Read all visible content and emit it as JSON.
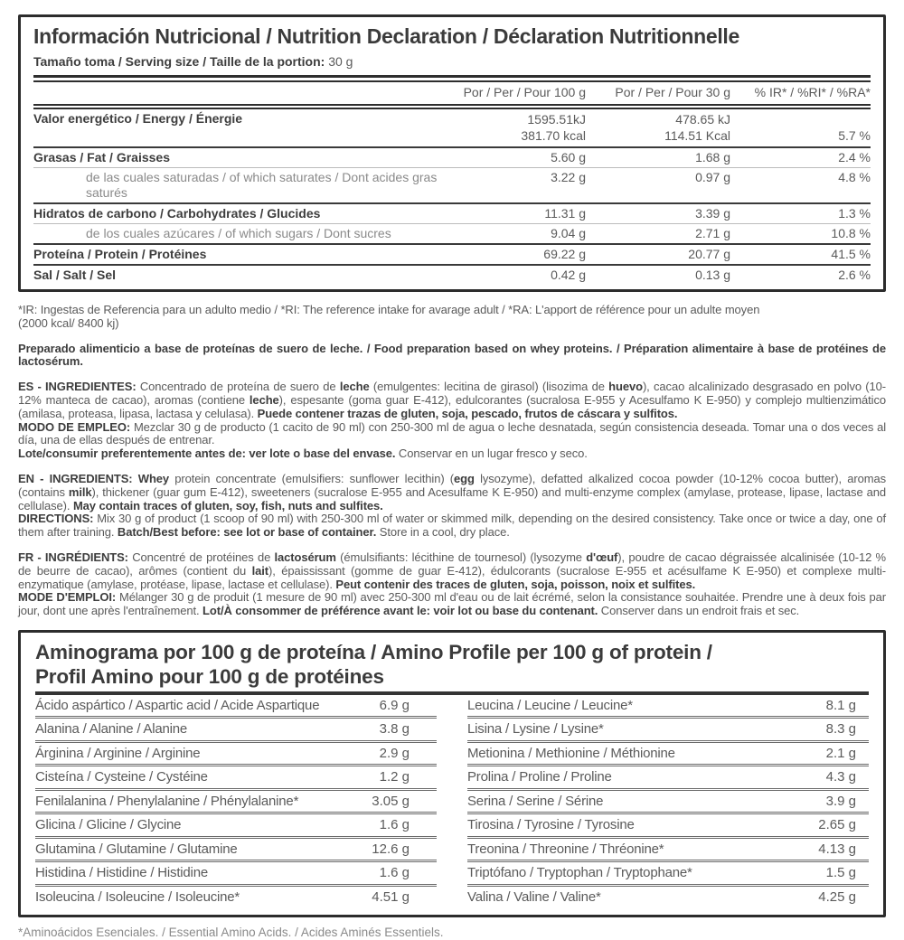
{
  "colors": {
    "text_dark": "#3d3d3d",
    "text_mid": "#5a5a5a",
    "text_light": "#8a8a8a",
    "border": "#2c2c2c"
  },
  "nutrition": {
    "title": "Información Nutricional / Nutrition Declaration / Déclaration Nutritionnelle",
    "serving_label": "Tamaño toma / Serving size / Taille de la portion:",
    "serving_value": "30 g",
    "columns": [
      "Por / Per / Pour 100 g",
      "Por / Per / Pour 30 g",
      "% IR* / %RI* / %RA*"
    ],
    "energy": {
      "label": "Valor energético / Energy / Énergie",
      "kj_100": "1595.51kJ",
      "kcal_100": "381.70 kcal",
      "kj_30": "478.65 kJ",
      "kcal_30": "114.51 Kcal",
      "ri": "5.7 %"
    },
    "rows": [
      {
        "label": "Grasas / Fat / Graisses",
        "v100": "5.60 g",
        "v30": "1.68 g",
        "ri": "2.4 %",
        "sep": "thick"
      },
      {
        "label": "de las cuales saturadas / of which saturates / Dont acides gras saturés",
        "v100": "3.22 g",
        "v30": "0.97 g",
        "ri": "4.8 %",
        "sub": true,
        "sep": "thin"
      },
      {
        "label": "Hidratos de carbono / Carbohydrates / Glucides",
        "v100": "11.31 g",
        "v30": "3.39 g",
        "ri": "1.3 %",
        "sep": "thick"
      },
      {
        "label": "de los cuales azúcares / of which sugars / Dont sucres",
        "v100": "9.04 g",
        "v30": "2.71 g",
        "ri": "10.8 %",
        "sub": true,
        "sep": "thin"
      },
      {
        "label": "Proteína / Protein / Protéines",
        "v100": "69.22 g",
        "v30": "20.77 g",
        "ri": "41.5 %",
        "sep": "thick"
      },
      {
        "label": "Sal / Salt / Sel",
        "v100": "0.42 g",
        "v30": "0.13 g",
        "ri": "2.6 %",
        "sep": "thick"
      }
    ]
  },
  "paragraphs": {
    "reference_note": [
      {
        "t": "*IR: Ingestas de Referencia para un adulto medio / *RI: The reference intake for avarage adult / *RA: L'apport de référence pour un adulte moyen\n(2000 kcal/ 8400 kj)"
      }
    ],
    "preparado": [
      {
        "t": "Preparado alimenticio a base de proteínas de suero de leche. / Food preparation based on whey proteins. / Préparation alimentaire à base de protéines de lactosérum.",
        "b": true
      }
    ],
    "es_ingredientes": [
      {
        "t": "ES - INGREDIENTES:",
        "b": true
      },
      {
        "t": " Concentrado de proteína de suero de "
      },
      {
        "t": "leche",
        "b": true
      },
      {
        "t": " (emulgentes: lecitina de girasol) (lisozima de "
      },
      {
        "t": "huevo",
        "b": true
      },
      {
        "t": "), cacao alcalinizado desgrasado en polvo (10-12% manteca de cacao), aromas (contiene "
      },
      {
        "t": "leche",
        "b": true
      },
      {
        "t": "), espesante (goma guar E-412), edulcorantes (sucralosa E-955 y Acesulfamo K E-950) y complejo multienzimático (amilasa, proteasa, lipasa, lactasa y celulasa). "
      },
      {
        "t": "Puede contener trazas de gluten, soja, pescado, frutos de cáscara y sulfitos.",
        "b": true
      }
    ],
    "modo_empleo": [
      {
        "t": "MODO DE EMPLEO:",
        "b": true
      },
      {
        "t": " Mezclar 30 g de producto (1 cacito de 90 ml) con 250-300 ml de agua o leche desnatada, según consistencia deseada. Tomar una o dos veces al día, una de ellas después de entrenar."
      }
    ],
    "lote": [
      {
        "t": "Lote/consumir preferentemente antes de: ver lote o base del envase.",
        "b": true
      },
      {
        "t": " Conservar en un lugar fresco y seco."
      }
    ],
    "en_ingredients": [
      {
        "t": "EN - INGREDIENTS: Whey",
        "b": true
      },
      {
        "t": " protein concentrate (emulsifiers: sunflower lecithin) ("
      },
      {
        "t": "egg",
        "b": true
      },
      {
        "t": " lysozyme), defatted alkalized cocoa powder (10-12% cocoa butter), aromas (contains "
      },
      {
        "t": "milk",
        "b": true
      },
      {
        "t": "), thickener (guar gum E-412), sweeteners (sucralose E-955 and Acesulfame K E-950) and multi-enzyme complex (amylase, protease, lipase, lactase and cellulase). "
      },
      {
        "t": "May contain traces of gluten, soy, fish, nuts and sulfites.",
        "b": true
      }
    ],
    "directions": [
      {
        "t": "DIRECTIONS:",
        "b": true
      },
      {
        "t": " Mix 30 g of product (1 scoop of 90 ml) with 250-300 ml of water or skimmed milk, depending on the desired consistency. Take once or twice a day, one of them after training. "
      },
      {
        "t": "Batch/Best before: see lot or base of container.",
        "b": true
      },
      {
        "t": " Store in a cool, dry place."
      }
    ],
    "fr_ingredients": [
      {
        "t": "FR - INGRÉDIENTS:",
        "b": true
      },
      {
        "t": " Concentré de protéines de "
      },
      {
        "t": "lactosérum",
        "b": true
      },
      {
        "t": " (émulsifiants: lécithine de tournesol) (lysozyme "
      },
      {
        "t": "d'œuf",
        "b": true
      },
      {
        "t": "), poudre de cacao dégraissée alcalinisée (10-12 % de beurre de cacao), arômes (contient du "
      },
      {
        "t": "lait",
        "b": true
      },
      {
        "t": "), épaississant (gomme de guar E-412), édulcorants (sucralose E-955 et acésulfame K E-950) et complexe multi-enzymatique (amylase, protéase, lipase, lactase et cellulase). "
      },
      {
        "t": "Peut contenir des traces de gluten, soja, poisson, noix et sulfites.",
        "b": true
      }
    ],
    "mode_emploi": [
      {
        "t": "MODE D'EMPLOI:",
        "b": true
      },
      {
        "t": " Mélanger 30 g de produit (1 mesure de 90 ml) avec 250-300 ml d'eau ou de lait écrémé, selon la consistance souhaitée. Prendre une à deux fois par jour, dont une après l'entraînement. "
      },
      {
        "t": "Lot/À consommer de préférence avant le: voir lot ou base du contenant.",
        "b": true
      },
      {
        "t": " Conserver dans un endroit frais et sec."
      }
    ]
  },
  "amino": {
    "title_lines": [
      "Aminograma por 100 g de proteína / Amino Profile per 100 g of protein /",
      "Profil Amino pour 100 g de protéines"
    ],
    "left": [
      {
        "label": "Ácido aspártico / Aspartic acid / Acide Aspartique",
        "value": "6.9 g"
      },
      {
        "label": "Alanina / Alanine / Alanine",
        "value": "3.8 g"
      },
      {
        "label": "Árginina / Arginine / Arginine",
        "value": "2.9 g"
      },
      {
        "label": "Cisteína / Cysteine / Cystéine",
        "value": "1.2 g"
      },
      {
        "label": "Fenilalanina / Phenylalanine / Phénylalanine*",
        "value": "3.05 g"
      },
      {
        "label": "Glicina / Glicine / Glycine",
        "value": "1.6 g"
      },
      {
        "label": "Glutamina / Glutamine / Glutamine",
        "value": "12.6 g"
      },
      {
        "label": "Histidina / Histidine / Histidine",
        "value": "1.6 g"
      },
      {
        "label": "Isoleucina / Isoleucine / Isoleucine*",
        "value": "4.51 g"
      }
    ],
    "right": [
      {
        "label": "Leucina / Leucine / Leucine*",
        "value": "8.1 g"
      },
      {
        "label": "Lisina / Lysine / Lysine*",
        "value": "8.3 g"
      },
      {
        "label": "Metionina / Methionine / Méthionine",
        "value": "2.1 g"
      },
      {
        "label": "Prolina / Proline / Proline",
        "value": "4.3 g"
      },
      {
        "label": "Serina / Serine / Sérine",
        "value": "3.9 g"
      },
      {
        "label": "Tirosina / Tyrosine / Tyrosine",
        "value": "2.65 g"
      },
      {
        "label": "Treonina / Threonine / Thréonine*",
        "value": "4.13 g"
      },
      {
        "label": "Triptófano / Tryptophan / Tryptophane*",
        "value": "1.5 g"
      },
      {
        "label": "Valina / Valine / Valine*",
        "value": "4.25 g"
      }
    ],
    "footer": "*Aminoácidos Esenciales. / Essential Amino Acids. / Acides Aminés Essentiels."
  }
}
